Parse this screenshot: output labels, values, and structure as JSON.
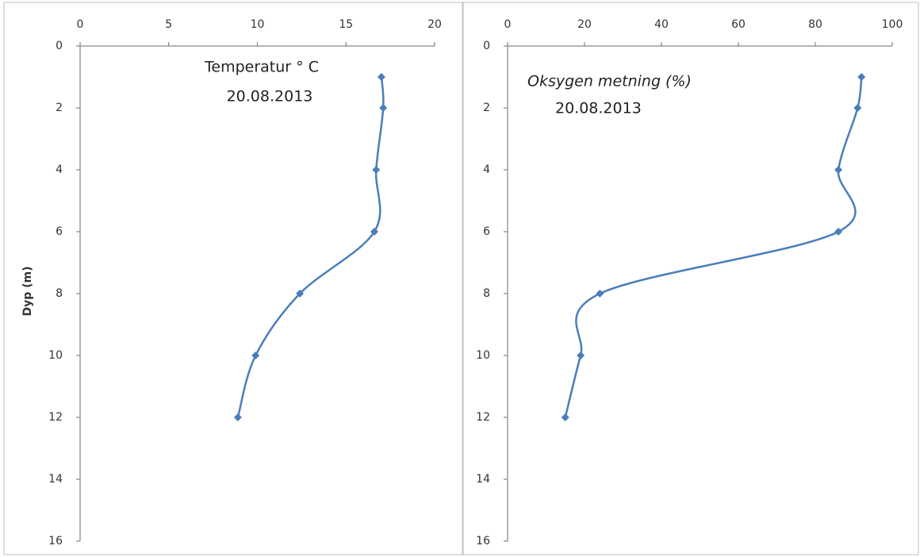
{
  "chart_data": [
    {
      "type": "line",
      "title": "Temperatur  ° C",
      "subtitle": "20.08.2013",
      "ylabel": "Dyp (m)",
      "x": [
        17,
        17.1,
        16.7,
        16.6,
        12.4,
        9.9,
        8.9
      ],
      "y": [
        1,
        2,
        4,
        6,
        8,
        10,
        12
      ],
      "color": "#4a7ebb",
      "xlim": [
        0,
        20
      ],
      "xticks": [
        0,
        5,
        10,
        15,
        20
      ],
      "ylim": [
        0,
        16
      ],
      "yticks": [
        0,
        2,
        4,
        6,
        8,
        10,
        12,
        14,
        16
      ],
      "y_inverted": true,
      "x_axis_position": "top"
    },
    {
      "type": "line",
      "title": "Oksygen metning (%)",
      "subtitle": "20.08.2013",
      "title_style": "italic",
      "x": [
        92,
        91,
        86,
        86,
        24,
        19,
        15
      ],
      "y": [
        1,
        2,
        4,
        6,
        8,
        10,
        12
      ],
      "color": "#4a7ebb",
      "xlim": [
        0,
        100
      ],
      "xticks": [
        0,
        20,
        40,
        60,
        80,
        100
      ],
      "ylim": [
        0,
        16
      ],
      "yticks": [
        0,
        2,
        4,
        6,
        8,
        10,
        12,
        14,
        16
      ],
      "y_inverted": true,
      "x_axis_position": "top"
    }
  ]
}
